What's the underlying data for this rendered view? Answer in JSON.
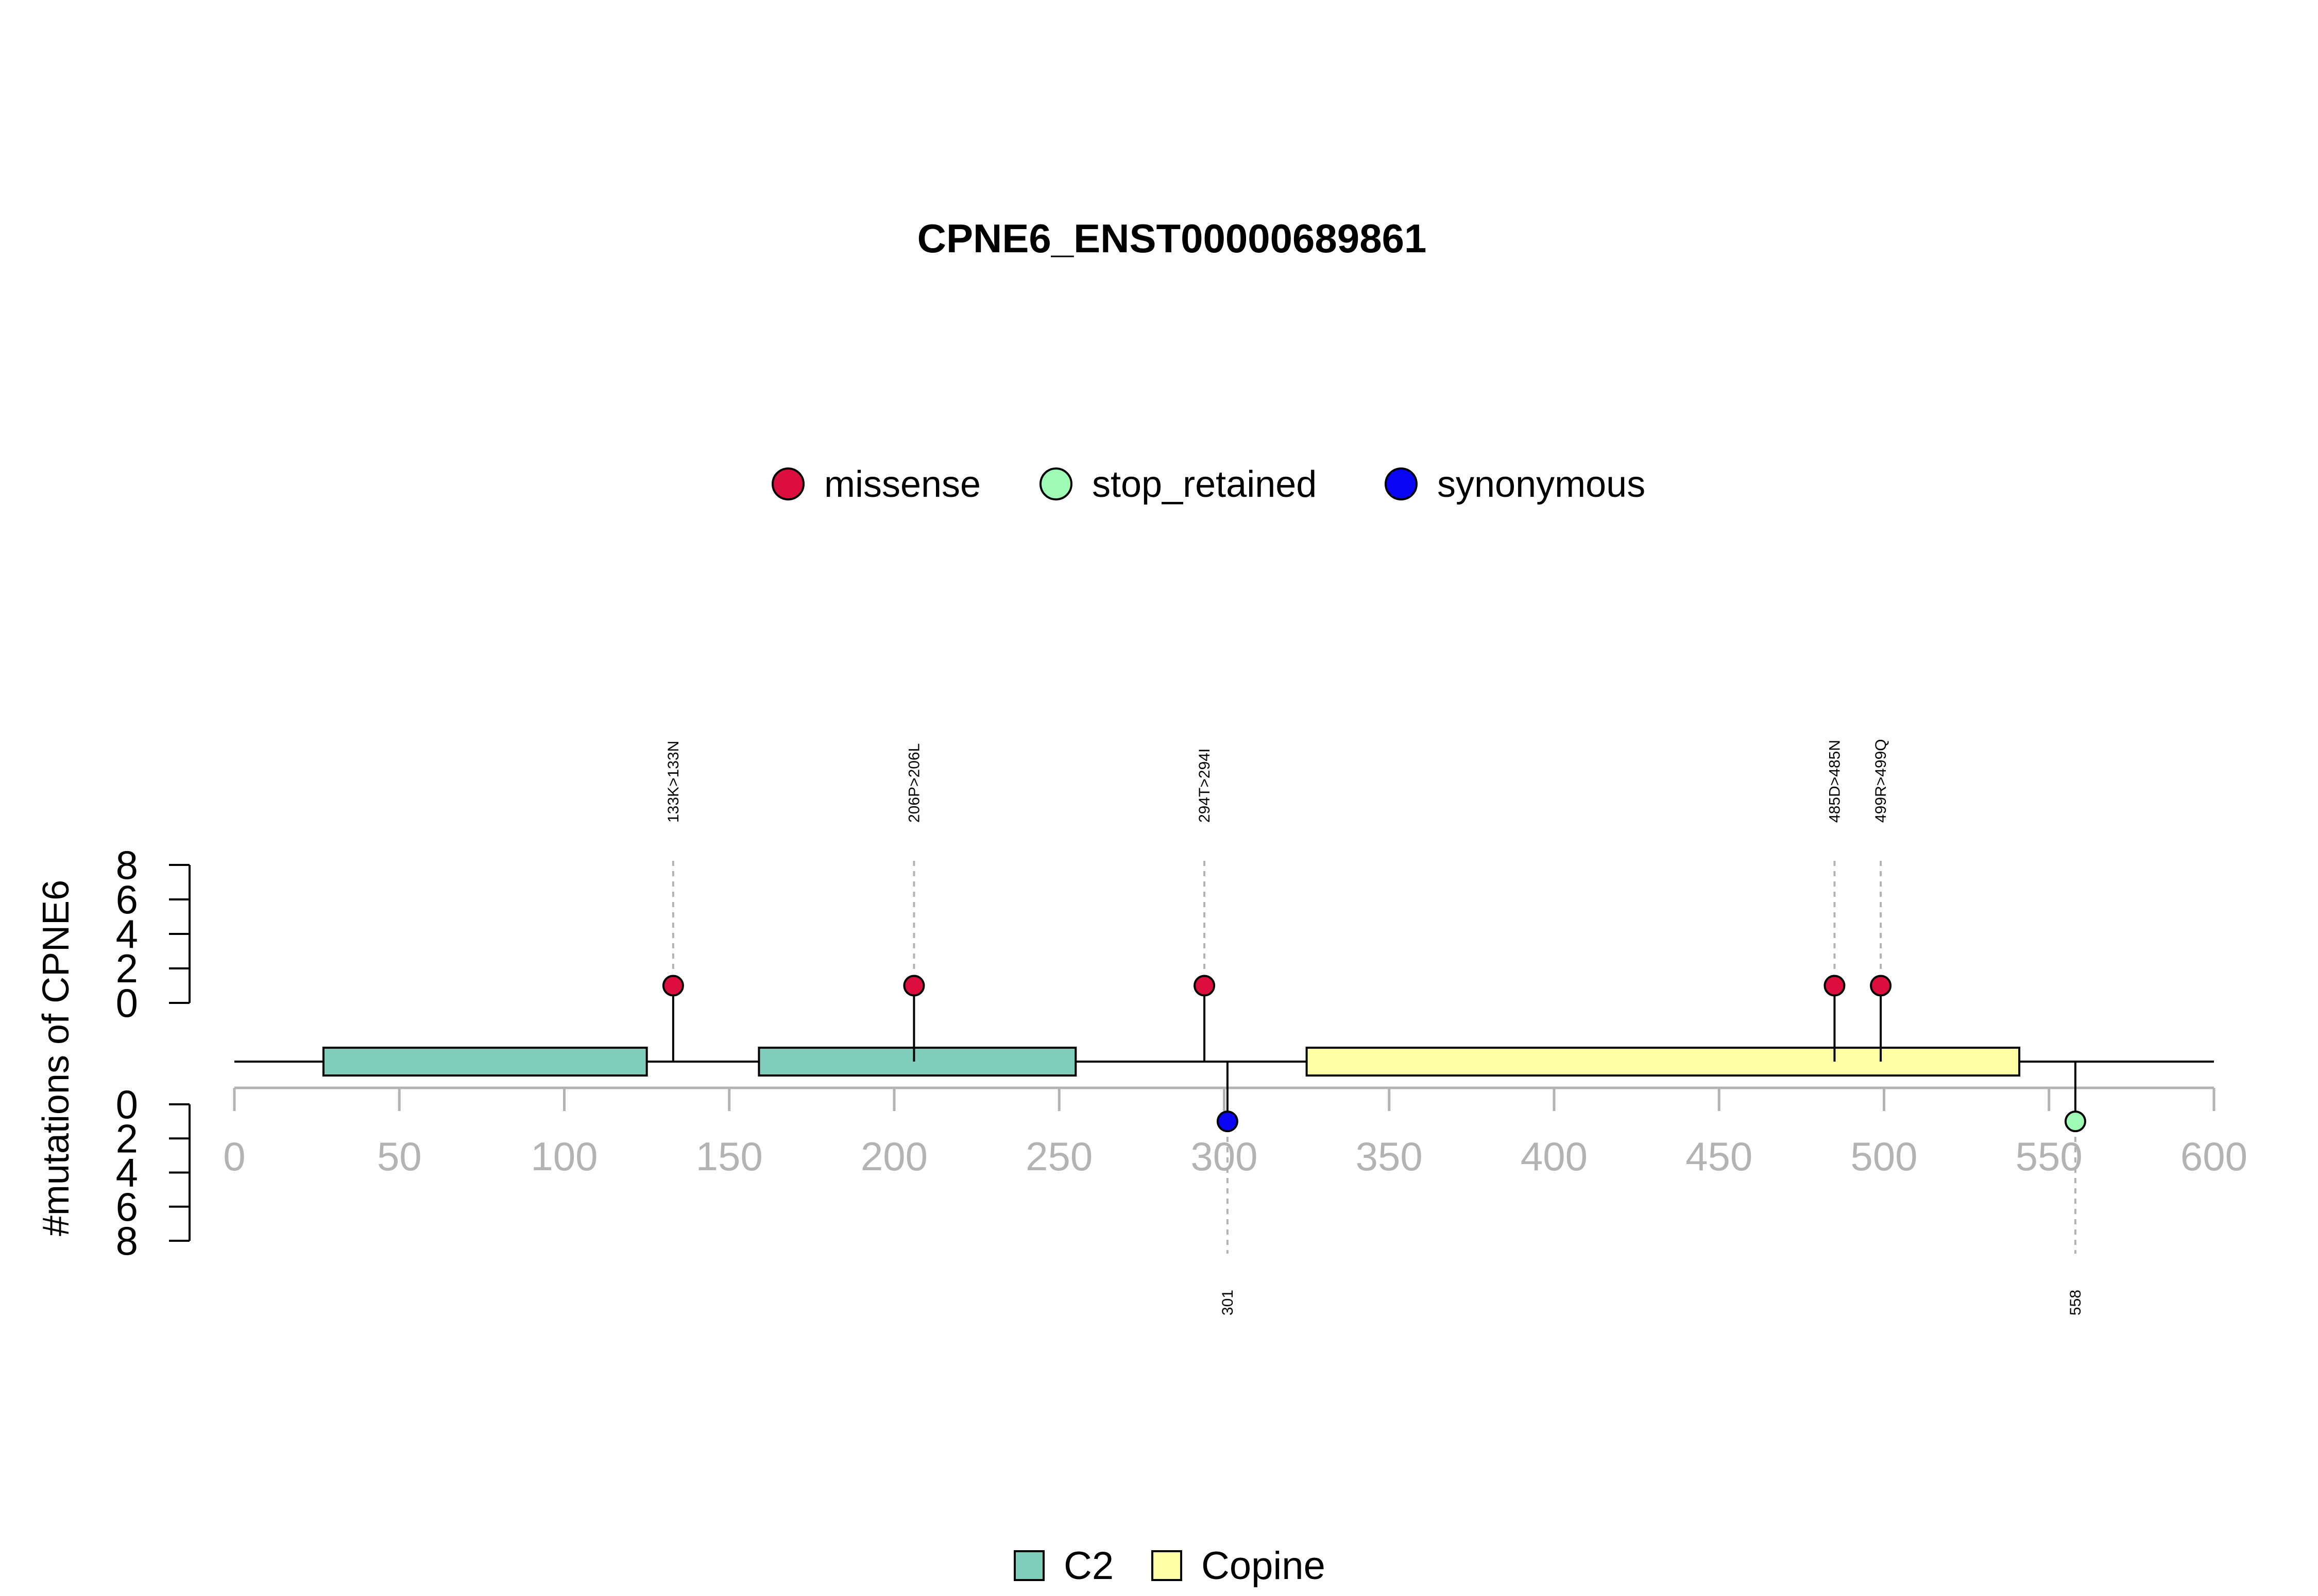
{
  "chart_data": {
    "type": "lollipop",
    "title": "CPNE6_ENST00000689861",
    "ylabel": "#mutations of CPNE6",
    "xlim": [
      0,
      600
    ],
    "x_ticks": [
      0,
      50,
      100,
      150,
      200,
      250,
      300,
      350,
      400,
      450,
      500,
      550,
      600
    ],
    "upper_y_ticks": [
      0,
      2,
      4,
      6,
      8
    ],
    "lower_y_ticks": [
      0,
      2,
      4,
      6,
      8
    ],
    "grid": false,
    "mutation_legend": [
      {
        "name": "missense",
        "color": "#dc0e3e"
      },
      {
        "name": "stop_retained",
        "color": "#9efcb4"
      },
      {
        "name": "synonymous",
        "color": "#0b05f5"
      }
    ],
    "domain_legend": [
      {
        "name": "C2",
        "color": "#7fcdbb"
      },
      {
        "name": "Copine",
        "color": "#ffffa6"
      }
    ],
    "domains": [
      {
        "name": "C2",
        "start": 27,
        "end": 125
      },
      {
        "name": "C2",
        "start": 159,
        "end": 255
      },
      {
        "name": "Copine",
        "start": 325,
        "end": 541
      }
    ],
    "mutations_upper": [
      {
        "position": 133,
        "label": "133K>133N",
        "type": "missense",
        "count": 1
      },
      {
        "position": 206,
        "label": "206P>206L",
        "type": "missense",
        "count": 1
      },
      {
        "position": 294,
        "label": "294T>294I",
        "type": "missense",
        "count": 1
      },
      {
        "position": 485,
        "label": "485D>485N",
        "type": "missense",
        "count": 1
      },
      {
        "position": 499,
        "label": "499R>499Q",
        "type": "missense",
        "count": 1
      }
    ],
    "mutations_lower": [
      {
        "position": 301,
        "label": "301",
        "type": "synonymous",
        "count": 1
      },
      {
        "position": 558,
        "label": "558",
        "type": "stop_retained",
        "count": 1
      }
    ]
  }
}
